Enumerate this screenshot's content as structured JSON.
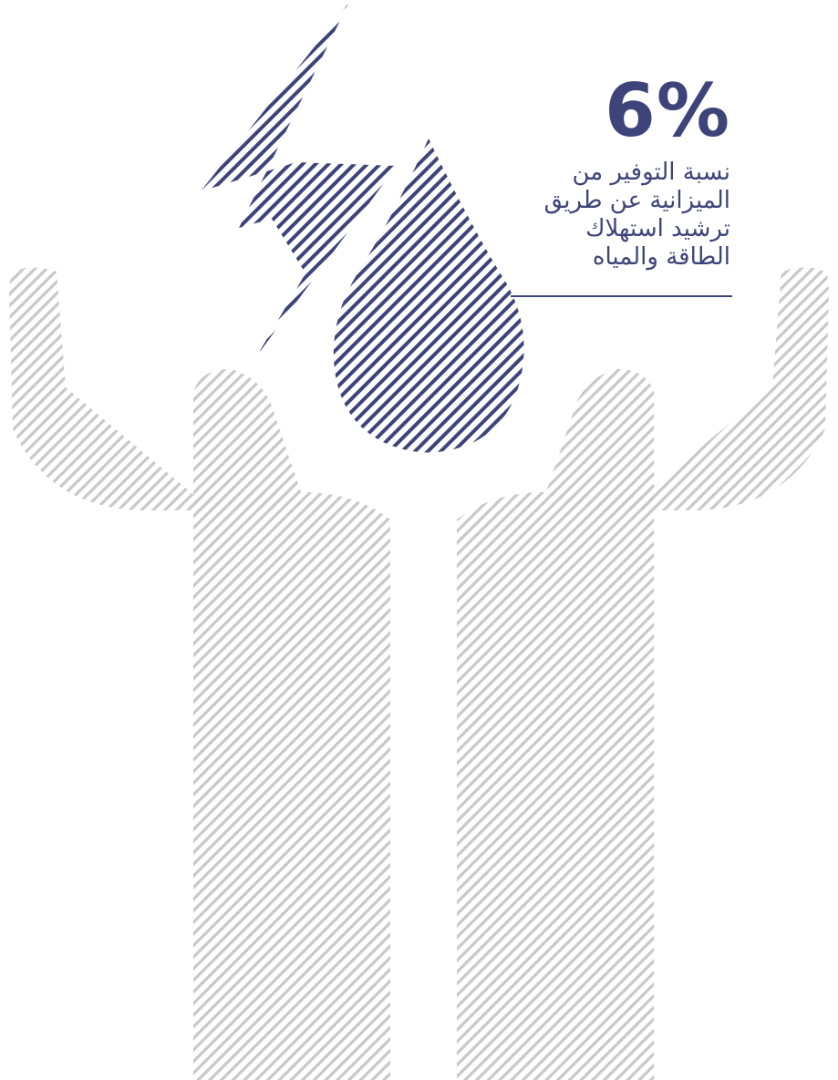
{
  "stat": {
    "value": "6%",
    "caption_lines": [
      "نسبة التوفير من",
      "الميزانية عن طريق",
      "ترشيد استهلاك",
      "الطاقة والمياه"
    ]
  },
  "colors": {
    "accent": "#3d4479",
    "figure_hatch": "#c8c8c8",
    "background": "#ffffff"
  },
  "icons": {
    "person": "people-raising-arms-icon",
    "energy": "lightning-bolt-icon",
    "water": "water-drop-icon"
  }
}
